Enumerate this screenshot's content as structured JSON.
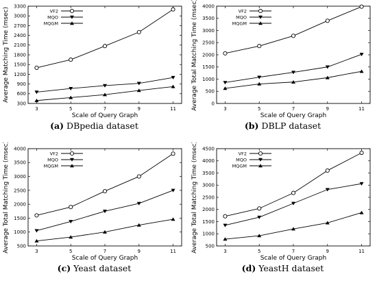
{
  "chart_data": [
    {
      "type": "line",
      "caption_letter": "(a)",
      "caption_text": "DBpedia dataset",
      "xlabel": "Scale of Query Graph",
      "ylabel": "Average Matching Time (msec)",
      "x": [
        3,
        5,
        7,
        9,
        11
      ],
      "xticks": [
        "3",
        "5",
        "7",
        "9",
        "11"
      ],
      "ylim": [
        300,
        3300
      ],
      "yticks": [
        300,
        600,
        900,
        1200,
        1500,
        1800,
        2100,
        2400,
        2700,
        3000,
        3300
      ],
      "legend_position": "top-left",
      "series": [
        {
          "name": "VF2",
          "marker": "circle",
          "values": [
            1400,
            1650,
            2070,
            2500,
            3200
          ]
        },
        {
          "name": "MQO",
          "marker": "triangle-down",
          "values": [
            650,
            760,
            850,
            920,
            1100
          ]
        },
        {
          "name": "MQGM",
          "marker": "triangle-up",
          "values": [
            390,
            480,
            570,
            700,
            820
          ]
        }
      ]
    },
    {
      "type": "line",
      "caption_letter": "(b)",
      "caption_text": "DBLP dataset",
      "xlabel": "Scale of Query Graph",
      "ylabel": "Average Total Matching Time (msec)",
      "x": [
        3,
        5,
        7,
        9,
        11
      ],
      "xticks": [
        "3",
        "5",
        "7",
        "9",
        "11"
      ],
      "ylim": [
        0,
        4000
      ],
      "yticks": [
        0,
        500,
        1000,
        1500,
        2000,
        2500,
        3000,
        3500,
        4000
      ],
      "legend_position": "top-left",
      "series": [
        {
          "name": "VF2",
          "marker": "circle",
          "values": [
            2060,
            2360,
            2780,
            3400,
            3980
          ]
        },
        {
          "name": "MQO",
          "marker": "triangle-down",
          "values": [
            860,
            1080,
            1280,
            1500,
            2020
          ]
        },
        {
          "name": "MQGM",
          "marker": "triangle-up",
          "values": [
            620,
            800,
            880,
            1060,
            1320
          ]
        }
      ]
    },
    {
      "type": "line",
      "caption_letter": "(c)",
      "caption_text": "Yeast dataset",
      "xlabel": "Scale of Query Graph",
      "ylabel": "Average Total Matching Time (msec)",
      "x": [
        3,
        5,
        7,
        9,
        11
      ],
      "xticks": [
        "3",
        "5",
        "7",
        "9",
        "11"
      ],
      "ylim": [
        500,
        4000
      ],
      "yticks": [
        500,
        1000,
        1500,
        2000,
        2500,
        3000,
        3500,
        4000
      ],
      "legend_position": "top-left",
      "series": [
        {
          "name": "VF2",
          "marker": "circle",
          "values": [
            1600,
            1900,
            2470,
            3000,
            3820
          ]
        },
        {
          "name": "MQO",
          "marker": "triangle-down",
          "values": [
            1050,
            1380,
            1750,
            2030,
            2500
          ]
        },
        {
          "name": "MQGM",
          "marker": "triangle-up",
          "values": [
            680,
            820,
            1000,
            1250,
            1460
          ]
        }
      ]
    },
    {
      "type": "line",
      "caption_letter": "(d)",
      "caption_text": "YeastH dataset",
      "xlabel": "Scale of Query Graph",
      "ylabel": "Average Total Matching Time (msec)",
      "x": [
        3,
        5,
        7,
        9,
        11
      ],
      "xticks": [
        "3",
        "5",
        "7",
        "9",
        "11"
      ],
      "ylim": [
        500,
        4500
      ],
      "yticks": [
        500,
        1000,
        1500,
        2000,
        2500,
        3000,
        3500,
        4000,
        4500
      ],
      "legend_position": "top-left",
      "series": [
        {
          "name": "VF2",
          "marker": "circle",
          "values": [
            1720,
            2040,
            2680,
            3600,
            4330
          ]
        },
        {
          "name": "MQO",
          "marker": "triangle-down",
          "values": [
            1350,
            1680,
            2250,
            2820,
            3060
          ]
        },
        {
          "name": "MQGM",
          "marker": "triangle-up",
          "values": [
            780,
            920,
            1200,
            1450,
            1870
          ]
        }
      ]
    }
  ]
}
